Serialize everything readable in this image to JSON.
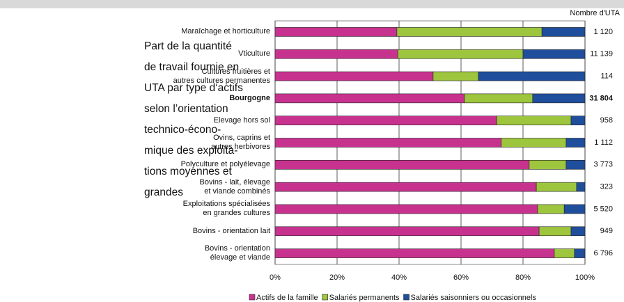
{
  "chart_data": {
    "type": "stacked-bar-horizontal",
    "description_lines": [
      "Part de la quantité",
      "de travail fournie en",
      "UTA par type d‘actifs",
      "selon l’orientation",
      "technico-écono-",
      "mique des exploita-",
      "tions moyennes et",
      "grandes"
    ],
    "categories": [
      "Maraîchage et horticulture",
      "Vticulture",
      "Cultures fruitières et\nautres cultures permanentes",
      "Bourgogne",
      "Elevage hors sol",
      "Ovins, caprins et\nautres herbivores",
      "Polyculture et polyélevage",
      "Bovins - lait, élevage\net viande combinés",
      "Exploitations spécialisées\nen grandes cultures",
      "Bovins - orientation lait",
      "Bovins - orientation\nélevage et viande"
    ],
    "bold": [
      false,
      false,
      false,
      true,
      false,
      false,
      false,
      false,
      false,
      false,
      false
    ],
    "series": [
      {
        "name": "Actifs de la famille",
        "color": "#c8328f",
        "values": [
          39.3,
          39.6,
          51.0,
          61.1,
          71.5,
          73.0,
          82.0,
          84.3,
          84.7,
          85.2,
          90.1
        ]
      },
      {
        "name": "Salariés permanents",
        "color": "#9dc53e",
        "values": [
          46.8,
          40.4,
          14.6,
          22.0,
          24.0,
          20.9,
          11.9,
          13.0,
          8.6,
          10.3,
          6.5
        ]
      },
      {
        "name": "Salariés saisonniers ou occasionnels",
        "color": "#1f4e9c",
        "values": [
          13.9,
          20.0,
          34.4,
          16.9,
          4.5,
          6.1,
          6.1,
          2.7,
          6.7,
          4.5,
          3.4
        ]
      }
    ],
    "xlim": [
      0,
      100
    ],
    "xticks": [
      {
        "value": 0,
        "label": "0%"
      },
      {
        "value": 20,
        "label": "20%"
      },
      {
        "value": 40,
        "label": "40%"
      },
      {
        "value": 60,
        "label": "60%"
      },
      {
        "value": 80,
        "label": "80%"
      },
      {
        "value": 100,
        "label": "100%"
      }
    ],
    "grid": true,
    "uta": {
      "title": "Nombre d'UTA",
      "values": [
        1120,
        11139,
        114,
        31804,
        958,
        1112,
        3773,
        323,
        5520,
        949,
        6796
      ],
      "value_labels": [
        "1 120",
        "11 139",
        "114",
        "31 804",
        "958",
        "1 112",
        "3 773",
        "323",
        "5 520",
        "949",
        "6 796"
      ]
    }
  }
}
